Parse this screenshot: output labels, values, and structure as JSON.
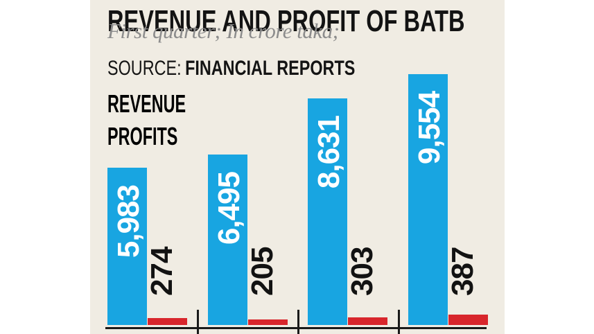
{
  "header": {
    "title": "REVENUE AND PROFIT OF BATB",
    "subtitle": "First quarter; In crore taka;",
    "source_label": "SOURCE:",
    "source_value": "FINANCIAL REPORTS"
  },
  "legend": {
    "revenue": "REVENUE",
    "profits": "PROFITS"
  },
  "colors": {
    "revenue_blue": "#18A5E1",
    "profit_red": "#D8262C",
    "panel_bg": "#F0ECE3",
    "heading_black": "#131313",
    "subtitle_gray": "#8C8C8C",
    "axis_black": "#1A1A1A",
    "revenue_label_white": "#FFFFFF",
    "profit_label_black": "#121212"
  },
  "chart_data": {
    "type": "bar",
    "title": "REVENUE AND PROFIT OF BATB",
    "subtitle": "First quarter; In crore taka;",
    "source": "FINANCIAL REPORTS",
    "unit": "crore taka",
    "n_groups": 4,
    "series": [
      {
        "name": "REVENUE",
        "color": "#18A5E1",
        "values": [
          5983,
          6495,
          8631,
          9554
        ],
        "labels": [
          "5,983",
          "6,495",
          "8,631",
          "9,554"
        ]
      },
      {
        "name": "PROFITS",
        "color": "#D8262C",
        "values": [
          274,
          205,
          303,
          387
        ],
        "labels": [
          "274",
          "205",
          "303",
          "387"
        ]
      }
    ],
    "ylim": [
      0,
      9600
    ],
    "grid": false,
    "legend_position": "top-left",
    "category_axis_labels_visible": false,
    "value_label_style": "rotated 90° CCW; revenue labels white inside blue bars, profit labels black above red bars"
  }
}
